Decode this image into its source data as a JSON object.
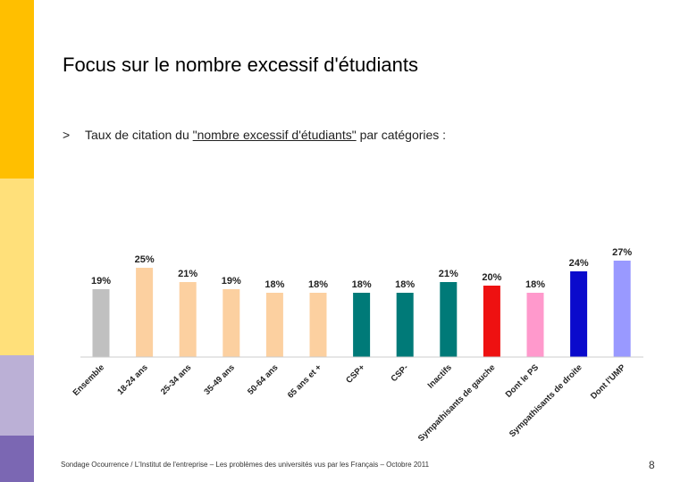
{
  "header": {
    "title": "Focus sur le nombre excessif d'étudiants",
    "bullet_mark": ">",
    "bullet_text_before": "Taux de citation du ",
    "bullet_text_highlight": "\"nombre excessif d'étudiants\"",
    "bullet_text_after": " par catégories :"
  },
  "footer": {
    "source": "Sondage Ocourrence / L'Institut de l'entreprise – Les problèmes des universités vus par les Français – Octobre 2011",
    "page_number": "8"
  },
  "side_band_colors": [
    "#ffbf00",
    "#ffe07a",
    "#bbb0d6",
    "#7b67b3"
  ],
  "chart_data": {
    "type": "bar",
    "title": "",
    "xlabel": "",
    "ylabel": "",
    "ylim": [
      0,
      30
    ],
    "categories": [
      "Ensemble",
      "18-24 ans",
      "25-34 ans",
      "35-49 ans",
      "50-64 ans",
      "65 ans et +",
      "CSP+",
      "CSP-",
      "Inactifs",
      "Sympathisants de gauche",
      "Dont le PS",
      "Sympathisants de droite",
      "Dont l'UMP"
    ],
    "values": [
      19,
      25,
      21,
      19,
      18,
      18,
      18,
      18,
      21,
      20,
      18,
      24,
      27
    ],
    "value_labels": [
      "19%",
      "25%",
      "21%",
      "19%",
      "18%",
      "18%",
      "18%",
      "18%",
      "21%",
      "20%",
      "18%",
      "24%",
      "27%"
    ],
    "colors": [
      "#c0c0c0",
      "#fcd0a0",
      "#fcd0a0",
      "#fcd0a0",
      "#fcd0a0",
      "#fcd0a0",
      "#007a78",
      "#007a78",
      "#007a78",
      "#ee1111",
      "#ff99cc",
      "#0a0acc",
      "#9999ff"
    ]
  }
}
